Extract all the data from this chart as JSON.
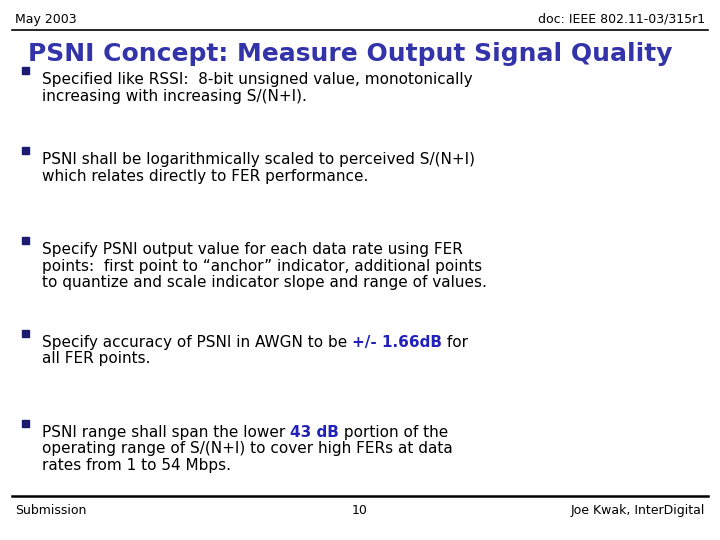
{
  "header_left": "May 2003",
  "header_right": "doc: IEEE 802.11-03/315r1",
  "title": "PSNI Concept: Measure Output Signal Quality",
  "title_color": "#3333aa",
  "bullet_color": "#1a1a6e",
  "text_color": "#000000",
  "highlight_color": "#2222bb",
  "footer_left": "Submission",
  "footer_center": "10",
  "footer_right": "Joe Kwak, InterDigital",
  "background_color": "#ffffff",
  "header_fontsize": 9,
  "title_fontsize": 18,
  "body_fontsize": 11,
  "footer_fontsize": 9,
  "bullets": [
    {
      "lines": [
        [
          {
            "text": "Specified like RSSI:  8-bit unsigned value, monotonically",
            "bold": false,
            "color": "#000000"
          }
        ],
        [
          {
            "text": "increasing with increasing S/(N+I).",
            "bold": false,
            "color": "#000000"
          }
        ]
      ]
    },
    {
      "lines": [
        [
          {
            "text": "PSNI shall be logarithmically scaled to perceived S/(N+I)",
            "bold": false,
            "color": "#000000"
          }
        ],
        [
          {
            "text": "which relates directly to FER performance.",
            "bold": false,
            "color": "#000000"
          }
        ]
      ]
    },
    {
      "lines": [
        [
          {
            "text": "Specify PSNI output value for each data rate using FER",
            "bold": false,
            "color": "#000000"
          }
        ],
        [
          {
            "text": "points:  first point to “anchor” indicator, additional points",
            "bold": false,
            "color": "#000000"
          }
        ],
        [
          {
            "text": "to quantize and scale indicator slope and range of values.",
            "bold": false,
            "color": "#000000"
          }
        ]
      ]
    },
    {
      "lines": [
        [
          {
            "text": "Specify accuracy of PSNI in AWGN to be ",
            "bold": false,
            "color": "#000000"
          },
          {
            "text": "+/- 1.66dB",
            "bold": true,
            "color": "#2222bb"
          },
          {
            "text": " for",
            "bold": false,
            "color": "#000000"
          }
        ],
        [
          {
            "text": "all FER points.",
            "bold": false,
            "color": "#000000"
          }
        ]
      ]
    },
    {
      "lines": [
        [
          {
            "text": "PSNI range shall span the lower ",
            "bold": false,
            "color": "#000000"
          },
          {
            "text": "43 dB",
            "bold": true,
            "color": "#2222bb"
          },
          {
            "text": " portion of the",
            "bold": false,
            "color": "#000000"
          }
        ],
        [
          {
            "text": "operating range of S/(N+I) to cover high FERs at data",
            "bold": false,
            "color": "#000000"
          }
        ],
        [
          {
            "text": "rates from 1 to 54 Mbps.",
            "bold": false,
            "color": "#000000"
          }
        ]
      ]
    }
  ]
}
